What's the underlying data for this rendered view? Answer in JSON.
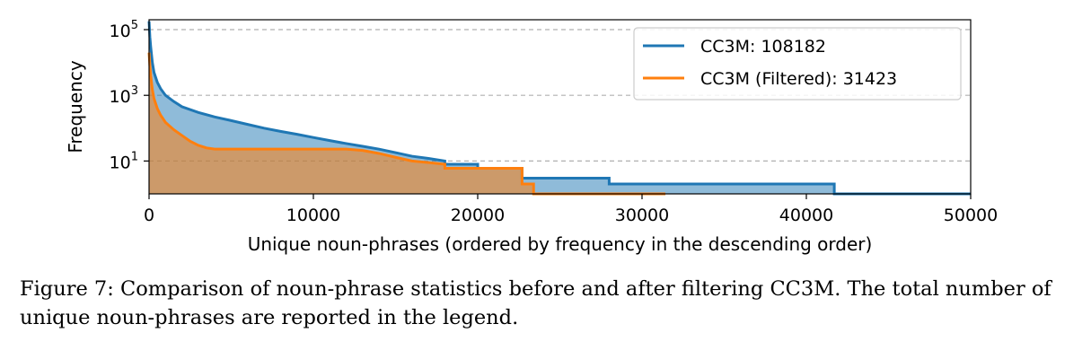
{
  "chart_data": {
    "type": "area",
    "xlabel": "Unique noun-phrases (ordered by frequency in the descending order)",
    "ylabel": "Frequency",
    "xlim": [
      0,
      50000
    ],
    "ylim": [
      1,
      200000
    ],
    "yscale": "log",
    "grid": "horizontal-dashed",
    "legend_position": "top-right",
    "x_ticks": [
      {
        "value": 0,
        "label": "0"
      },
      {
        "value": 10000,
        "label": "10000"
      },
      {
        "value": 20000,
        "label": "20000"
      },
      {
        "value": 30000,
        "label": "30000"
      },
      {
        "value": 40000,
        "label": "40000"
      },
      {
        "value": 50000,
        "label": "50000"
      }
    ],
    "y_ticks": [
      {
        "value": 10,
        "base": "10",
        "exp": "1"
      },
      {
        "value": 1000,
        "base": "10",
        "exp": "3"
      },
      {
        "value": 100000,
        "base": "10",
        "exp": "5"
      }
    ],
    "series": [
      {
        "name": "CC3M",
        "legend_label": "CC3M: 108182",
        "total": 108182,
        "color": "#1f77b4",
        "points": [
          [
            0,
            180000
          ],
          [
            50,
            60000
          ],
          [
            100,
            30000
          ],
          [
            200,
            10000
          ],
          [
            300,
            5000
          ],
          [
            500,
            2500
          ],
          [
            700,
            1600
          ],
          [
            1000,
            1000
          ],
          [
            1500,
            650
          ],
          [
            2000,
            450
          ],
          [
            3000,
            300
          ],
          [
            4000,
            220
          ],
          [
            5000,
            170
          ],
          [
            6000,
            130
          ],
          [
            7000,
            100
          ],
          [
            8000,
            80
          ],
          [
            9000,
            65
          ],
          [
            10000,
            52
          ],
          [
            11000,
            42
          ],
          [
            12000,
            34
          ],
          [
            13000,
            28
          ],
          [
            14000,
            23
          ],
          [
            15000,
            18
          ],
          [
            16000,
            14
          ],
          [
            17000,
            12
          ],
          [
            18000,
            10
          ],
          [
            18000,
            8
          ],
          [
            20000,
            8
          ],
          [
            20000,
            6
          ],
          [
            22700,
            6
          ],
          [
            22700,
            3
          ],
          [
            28000,
            3
          ],
          [
            28000,
            2
          ],
          [
            41700,
            2
          ],
          [
            41700,
            1
          ],
          [
            50000,
            1
          ]
        ]
      },
      {
        "name": "CC3M (Filtered)",
        "legend_label": "CC3M (Filtered):  31423",
        "total": 31423,
        "color": "#ff7f0e",
        "points": [
          [
            0,
            20000
          ],
          [
            50,
            8000
          ],
          [
            100,
            4000
          ],
          [
            200,
            1500
          ],
          [
            300,
            800
          ],
          [
            500,
            400
          ],
          [
            700,
            250
          ],
          [
            1000,
            150
          ],
          [
            1500,
            90
          ],
          [
            2000,
            60
          ],
          [
            2500,
            40
          ],
          [
            3000,
            30
          ],
          [
            3500,
            25
          ],
          [
            4000,
            23
          ],
          [
            12000,
            23
          ],
          [
            13000,
            21
          ],
          [
            14000,
            17
          ],
          [
            15000,
            13
          ],
          [
            16000,
            10
          ],
          [
            17000,
            9
          ],
          [
            18000,
            8
          ],
          [
            18000,
            6
          ],
          [
            22700,
            6
          ],
          [
            22700,
            2
          ],
          [
            23400,
            2
          ],
          [
            23400,
            1
          ],
          [
            31423,
            1
          ]
        ]
      }
    ]
  },
  "caption": "Figure 7: Comparison of noun-phrase statistics before and after filtering CC3M. The total number of unique noun-phrases are reported in the legend."
}
